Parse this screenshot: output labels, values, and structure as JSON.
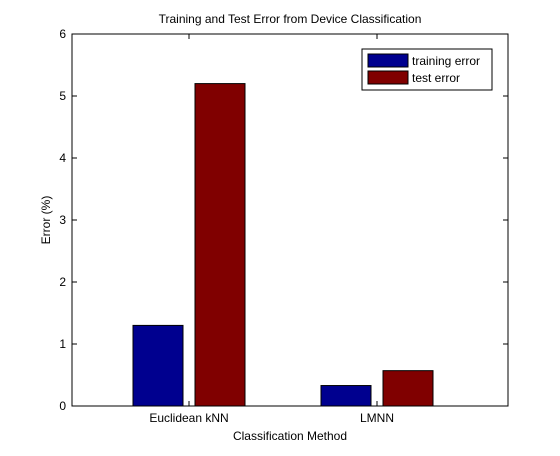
{
  "chart_data": {
    "type": "bar",
    "title": "Training and Test Error from Device Classification",
    "xlabel": "Classification Method",
    "ylabel": "Error (%)",
    "categories": [
      "Euclidean kNN",
      "LMNN"
    ],
    "series": [
      {
        "name": "training error",
        "color": "#00008f",
        "values": [
          1.3,
          0.33
        ]
      },
      {
        "name": "test error",
        "color": "#800000",
        "values": [
          5.2,
          0.57
        ]
      }
    ],
    "ylim": [
      0,
      6
    ],
    "yticks": [
      "0",
      "1",
      "2",
      "3",
      "4",
      "5",
      "6"
    ],
    "grid": false,
    "legend_position": "top-right"
  }
}
